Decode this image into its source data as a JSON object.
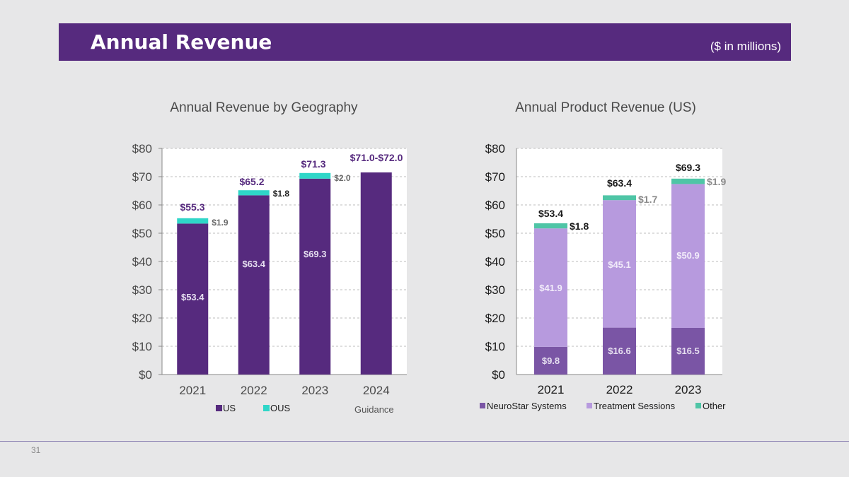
{
  "slide": {
    "title": "Annual Revenue",
    "units_note": "($ in millions)",
    "page_number": "31"
  },
  "colors": {
    "title_bar": "#562a7e",
    "us": "#562a7e",
    "ous": "#2fd6c8",
    "neurostar": "#7a55a5",
    "treatment": "#b79ade",
    "other": "#4fc5a6",
    "background": "#e7e7e8"
  },
  "chart_data": [
    {
      "type": "bar",
      "stacked": true,
      "title": "Annual Revenue by Geography",
      "categories": [
        "2021",
        "2022",
        "2023",
        "2024"
      ],
      "series": [
        {
          "name": "US",
          "values": [
            53.4,
            63.4,
            69.3,
            71.5
          ]
        },
        {
          "name": "OUS",
          "values": [
            1.9,
            1.8,
            2.0,
            0
          ]
        }
      ],
      "segment_labels": {
        "US": [
          "$53.4",
          "$63.4",
          "$69.3",
          ""
        ],
        "OUS": [
          "$1.9",
          "$1.8",
          "$2.0",
          ""
        ]
      },
      "total_labels": [
        "$55.3",
        "$65.2",
        "$71.3",
        "$71.0-$72.0"
      ],
      "y_ticks": [
        "$0",
        "$10",
        "$20",
        "$30",
        "$40",
        "$50",
        "$60",
        "$70",
        "$80"
      ],
      "ylim": [
        0,
        80
      ],
      "legend": [
        "US",
        "OUS"
      ],
      "legend_note": "Guidance",
      "grid": true,
      "legend_position": "bottom"
    },
    {
      "type": "bar",
      "stacked": true,
      "title": "Annual Product Revenue (US)",
      "categories": [
        "2021",
        "2022",
        "2023"
      ],
      "series": [
        {
          "name": "NeuroStar Systems",
          "values": [
            9.8,
            16.6,
            16.5
          ]
        },
        {
          "name": "Treatment Sessions",
          "values": [
            41.9,
            45.1,
            50.9
          ]
        },
        {
          "name": "Other",
          "values": [
            1.8,
            1.7,
            1.9
          ]
        }
      ],
      "segment_labels": {
        "NeuroStar Systems": [
          "$9.8",
          "$16.6",
          "$16.5"
        ],
        "Treatment Sessions": [
          "$41.9",
          "$45.1",
          "$50.9"
        ],
        "Other": [
          "$1.8",
          "$1.7",
          "$1.9"
        ]
      },
      "total_labels": [
        "$53.4",
        "$63.4",
        "$69.3"
      ],
      "y_ticks": [
        "$0",
        "$10",
        "$20",
        "$30",
        "$40",
        "$50",
        "$60",
        "$70",
        "$80"
      ],
      "ylim": [
        0,
        80
      ],
      "legend": [
        "NeuroStar Systems",
        "Treatment Sessions",
        "Other"
      ],
      "grid": true,
      "legend_position": "bottom"
    }
  ]
}
